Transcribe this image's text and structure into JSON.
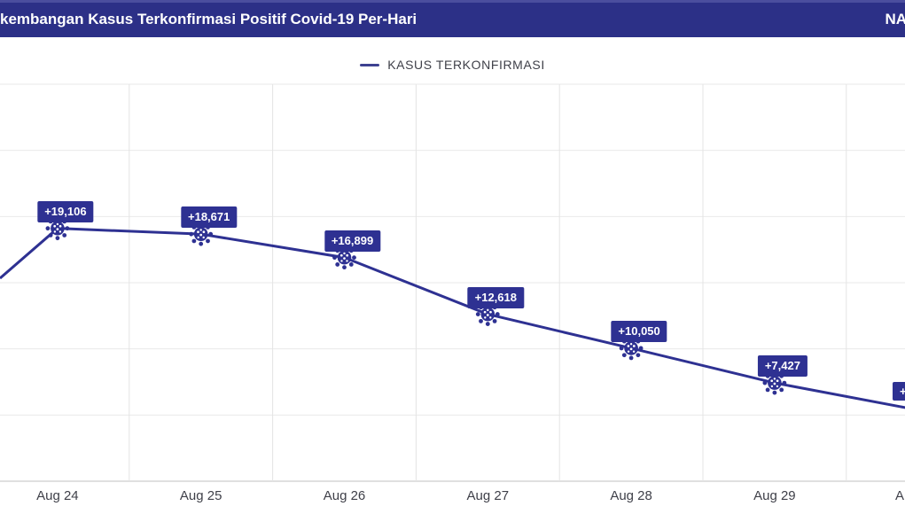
{
  "header": {
    "title": "kembangan Kasus Terkonfirmasi Positif Covid-19 Per-Hari",
    "right_label": "NA"
  },
  "legend": {
    "label": "KASUS TERKONFIRMASI"
  },
  "colors": {
    "accent_navy": "#2e3192",
    "header_navy": "#2c3087",
    "grid_light": "#e9e9e9",
    "grid_vertical": "#e4e4e4",
    "axis_line": "#d5d5d5",
    "text_dark": "#3f4049",
    "label_text": "#ffffff"
  },
  "chart_data": {
    "type": "line",
    "title": "kembangan Kasus Terkonfirmasi Positif Covid-19 Per-Hari",
    "legend_entries": [
      "KASUS TERKONFIRMASI"
    ],
    "legend_position": "top-center",
    "categories": [
      "Aug 24",
      "Aug 25",
      "Aug 26",
      "Aug 27",
      "Aug 28",
      "Aug 29"
    ],
    "series": [
      {
        "name": "KASUS TERKONFIRMASI",
        "values": [
          19106,
          18671,
          16899,
          12618,
          10050,
          7427
        ]
      }
    ],
    "point_labels": [
      "+19,106",
      "+18,671",
      "+16,899",
      "+12,618",
      "+10,050",
      "+7,427"
    ],
    "partial_next_category": "A",
    "partial_next_point_label": "+",
    "xlabel": "",
    "ylabel": "",
    "ylim": [
      0,
      30000
    ],
    "gridline_step": 5000,
    "grid": true,
    "y_axis_labels_visible": false,
    "marker": "virus-icon"
  }
}
